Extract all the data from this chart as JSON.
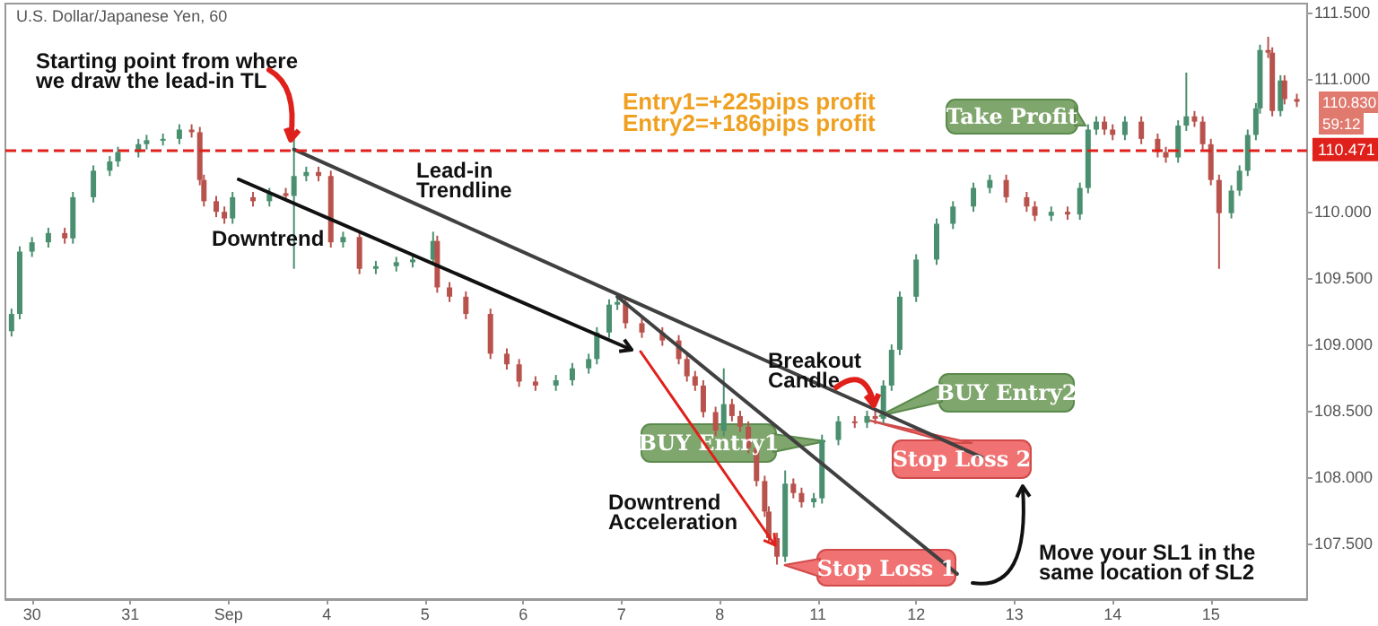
{
  "chart_data": {
    "type": "candlestick",
    "title": "U.S. Dollar/Japanese Yen, 60",
    "categories": [
      null,
      null,
      null,
      null,
      null,
      null,
      "30",
      null,
      null,
      null,
      null,
      null,
      null,
      null,
      null,
      null,
      null,
      null,
      null,
      null,
      null,
      null,
      null,
      null,
      null,
      null,
      null,
      null,
      null,
      null,
      "31",
      null,
      null,
      null,
      null,
      null,
      null,
      null,
      null,
      null,
      null,
      null,
      null,
      null,
      null,
      null,
      null,
      null,
      null,
      null,
      null,
      null,
      null,
      null,
      "Sep",
      null,
      null,
      null,
      null,
      null,
      null,
      null,
      null,
      null,
      null,
      null,
      null,
      null,
      null,
      null,
      null,
      null,
      null,
      null,
      null,
      null,
      null,
      null,
      "4",
      null,
      null,
      null,
      null,
      null,
      null,
      null,
      null,
      null,
      null,
      null,
      null,
      null,
      null,
      null,
      null,
      null,
      null,
      null,
      null,
      null,
      null,
      null,
      "5",
      null,
      null,
      null,
      null,
      null,
      null,
      null,
      null,
      null,
      null,
      null,
      null,
      null,
      null,
      null,
      null,
      null,
      null,
      null,
      null,
      null,
      null,
      null,
      "6",
      null,
      null,
      null,
      null,
      null,
      null,
      null,
      null,
      null,
      null,
      null,
      null,
      null,
      null,
      null,
      null,
      null,
      null,
      null,
      null,
      null,
      null,
      null,
      "7",
      null,
      null,
      null,
      null,
      null,
      null,
      null,
      null,
      null,
      null,
      null,
      null,
      null,
      null,
      null,
      null,
      null,
      null,
      null,
      null,
      null,
      null,
      null,
      "8",
      null,
      null,
      null,
      null,
      null,
      null,
      null,
      null,
      null,
      null,
      null,
      null,
      null,
      null,
      null,
      null,
      null,
      null,
      null,
      null,
      null,
      null,
      null,
      "11",
      null,
      null,
      null,
      null,
      null,
      null,
      null,
      null,
      null,
      null,
      null,
      null,
      null,
      null,
      null,
      null,
      null,
      null,
      null,
      null,
      null,
      null,
      null,
      "12",
      null,
      null,
      null,
      null,
      null,
      null,
      null,
      null,
      null,
      null,
      null,
      null,
      null,
      null,
      null,
      null,
      null,
      null,
      null,
      null,
      null,
      null,
      null,
      "13",
      null,
      null,
      null,
      null,
      null,
      null,
      null,
      null,
      null,
      null,
      null,
      null,
      null,
      null,
      null,
      null,
      null,
      null,
      null,
      null,
      null,
      null,
      null,
      "14",
      null,
      null,
      null,
      null,
      null,
      null,
      null,
      null,
      null,
      null,
      null,
      null,
      null,
      null,
      null,
      null,
      null,
      null,
      null,
      null,
      null,
      null,
      null,
      "15",
      null,
      null,
      null,
      null,
      null,
      null,
      null,
      null,
      null,
      null,
      null,
      null,
      null,
      null,
      null,
      null,
      null,
      null,
      null,
      null,
      null,
      null,
      null
    ],
    "ylim": [
      107.08,
      111.57
    ],
    "yticks": [
      {
        "value": 107.5,
        "label": "107.500"
      },
      {
        "value": 108,
        "label": "108.000"
      },
      {
        "value": 108.5,
        "label": "108.500"
      },
      {
        "value": 109,
        "label": "109.000"
      },
      {
        "value": 109.5,
        "label": "109.500"
      },
      {
        "value": 110,
        "label": "110.000"
      },
      {
        "value": 111,
        "label": "111.000"
      },
      {
        "value": 111.5,
        "label": "111.500"
      }
    ],
    "grid": false,
    "ref_lines": [
      {
        "axis": "y",
        "value": 110.471,
        "label": "110.471",
        "color": "#e0201b",
        "line_style": "dashed"
      }
    ],
    "series": [
      {
        "ohlc": [
          null,
          [
            109.1,
            109.27,
            109.06,
            109.23
          ],
          null,
          [
            109.23,
            109.74,
            109.19,
            109.7
          ],
          null,
          null,
          [
            109.7,
            109.81,
            109.66,
            109.77
          ],
          null,
          null,
          null,
          [
            109.77,
            109.88,
            109.73,
            109.84
          ],
          null,
          null,
          null,
          [
            109.84,
            109.88,
            109.76,
            109.8
          ],
          null,
          [
            109.8,
            110.15,
            109.76,
            110.11
          ],
          null,
          null,
          null,
          null,
          [
            110.11,
            110.35,
            110.07,
            110.31
          ],
          null,
          null,
          null,
          [
            110.31,
            110.42,
            110.27,
            110.38
          ],
          null,
          [
            110.38,
            110.49,
            110.34,
            110.45
          ],
          null,
          null,
          null,
          null,
          [
            110.45,
            110.55,
            110.41,
            110.51
          ],
          null,
          [
            110.51,
            110.58,
            110.47,
            110.54
          ],
          null,
          null,
          null,
          [
            110.54,
            110.59,
            110.5,
            110.55
          ],
          null,
          null,
          null,
          [
            110.55,
            110.66,
            110.51,
            110.62
          ],
          null,
          null,
          [
            110.62,
            110.66,
            110.56,
            110.6
          ],
          null,
          [
            110.6,
            110.64,
            110.2,
            110.24
          ],
          [
            110.24,
            110.28,
            110.04,
            110.08
          ],
          null,
          null,
          [
            110.08,
            110.12,
            109.96,
            110.0
          ],
          null,
          [
            110.0,
            110.04,
            109.91,
            109.95
          ],
          null,
          [
            109.95,
            110.15,
            109.91,
            110.11
          ],
          null,
          null,
          null,
          null,
          [
            110.11,
            110.15,
            110.04,
            110.08
          ],
          null,
          null,
          null,
          [
            110.08,
            110.18,
            110.04,
            110.14
          ],
          null,
          null,
          null,
          [
            110.14,
            110.18,
            110.08,
            110.12
          ],
          null,
          [
            110.12,
            110.62,
            109.57,
            110.27
          ],
          null,
          null,
          [
            110.27,
            110.34,
            110.23,
            110.3
          ],
          null,
          null,
          [
            110.3,
            110.34,
            110.23,
            110.27
          ],
          null,
          null,
          [
            110.27,
            110.31,
            109.73,
            109.77
          ],
          null,
          null,
          [
            109.77,
            109.85,
            109.73,
            109.81
          ],
          null,
          null,
          null,
          [
            109.81,
            109.85,
            109.53,
            109.57
          ],
          null,
          null,
          null,
          [
            109.57,
            109.63,
            109.53,
            109.59
          ],
          null,
          null,
          null,
          null,
          [
            109.59,
            109.66,
            109.55,
            109.62
          ],
          null,
          null,
          null,
          [
            109.62,
            109.68,
            109.58,
            109.64
          ],
          null,
          null,
          null,
          null,
          [
            109.64,
            109.85,
            109.6,
            109.78
          ],
          [
            109.78,
            109.82,
            109.39,
            109.43
          ],
          null,
          null,
          [
            109.43,
            109.47,
            109.32,
            109.36
          ],
          null,
          null,
          null,
          [
            109.36,
            109.4,
            109.19,
            109.23
          ],
          null,
          null,
          null,
          null,
          null,
          [
            109.23,
            109.27,
            108.89,
            108.93
          ],
          null,
          null,
          null,
          [
            108.93,
            108.97,
            108.81,
            108.85
          ],
          null,
          null,
          [
            108.85,
            108.89,
            108.68,
            108.72
          ],
          null,
          null,
          null,
          [
            108.72,
            108.76,
            108.65,
            108.69
          ],
          null,
          null,
          null,
          null,
          [
            108.69,
            108.77,
            108.65,
            108.73
          ],
          null,
          null,
          null,
          [
            108.73,
            108.86,
            108.69,
            108.82
          ],
          null,
          null,
          null,
          [
            108.82,
            108.93,
            108.78,
            108.89
          ],
          null,
          [
            108.89,
            109.13,
            108.85,
            109.09
          ],
          null,
          null,
          [
            109.09,
            109.34,
            109.05,
            109.3
          ],
          null,
          [
            109.3,
            109.36,
            109.26,
            109.32
          ],
          null,
          [
            109.32,
            109.36,
            109.12,
            109.16
          ],
          null,
          null,
          null,
          [
            109.16,
            109.2,
            109.05,
            109.09
          ],
          null,
          null,
          null,
          null,
          [
            109.09,
            109.13,
            108.99,
            109.03
          ],
          null,
          null,
          null,
          [
            109.03,
            109.07,
            108.85,
            108.89
          ],
          null,
          [
            108.89,
            108.93,
            108.72,
            108.76
          ],
          null,
          [
            108.76,
            108.8,
            108.65,
            108.69
          ],
          null,
          [
            108.69,
            108.73,
            108.45,
            108.49
          ],
          null,
          null,
          [
            108.49,
            108.53,
            108.31,
            108.35
          ],
          null,
          [
            108.35,
            108.82,
            108.31,
            108.55
          ],
          null,
          [
            108.55,
            108.59,
            108.42,
            108.46
          ],
          null,
          [
            108.46,
            108.5,
            108.34,
            108.38
          ],
          null,
          [
            108.38,
            108.42,
            108.18,
            108.22
          ],
          null,
          [
            108.22,
            108.26,
            107.93,
            107.97
          ],
          null,
          [
            107.97,
            108.01,
            107.7,
            107.74
          ],
          [
            107.74,
            107.78,
            107.5,
            107.54
          ],
          null,
          [
            107.54,
            107.58,
            107.34,
            107.4
          ],
          null,
          [
            107.4,
            108.05,
            107.36,
            107.95
          ],
          null,
          [
            107.95,
            107.99,
            107.84,
            107.88
          ],
          null,
          [
            107.88,
            107.92,
            107.77,
            107.81
          ],
          null,
          null,
          [
            107.81,
            107.88,
            107.77,
            107.84
          ],
          null,
          [
            107.84,
            108.32,
            107.8,
            108.28
          ],
          null,
          null,
          null,
          [
            108.28,
            108.46,
            108.24,
            108.42
          ],
          null,
          null,
          null,
          [
            108.42,
            108.46,
            108.37,
            108.41
          ],
          null,
          null,
          [
            108.41,
            108.5,
            108.37,
            108.46
          ],
          null,
          [
            108.46,
            108.52,
            108.4,
            108.44
          ],
          null,
          [
            108.44,
            108.73,
            108.4,
            108.69
          ],
          null,
          [
            108.69,
            109.0,
            108.65,
            108.96
          ],
          null,
          [
            108.96,
            109.4,
            108.92,
            109.36
          ],
          null,
          null,
          null,
          [
            109.36,
            109.68,
            109.32,
            109.64
          ],
          null,
          null,
          null,
          null,
          [
            109.64,
            109.95,
            109.6,
            109.91
          ],
          null,
          null,
          null,
          [
            109.91,
            110.08,
            109.87,
            110.04
          ],
          null,
          null,
          null,
          null,
          [
            110.04,
            110.22,
            110.0,
            110.18
          ],
          null,
          null,
          null,
          [
            110.18,
            110.28,
            110.14,
            110.24
          ],
          null,
          null,
          null,
          [
            110.24,
            110.28,
            110.07,
            110.11
          ],
          null,
          null,
          null,
          null,
          [
            110.11,
            110.15,
            110.0,
            110.04
          ],
          null,
          [
            110.04,
            110.08,
            109.93,
            109.97
          ],
          null,
          null,
          null,
          [
            109.97,
            110.04,
            109.93,
            110.0
          ],
          null,
          null,
          null,
          [
            110.0,
            110.04,
            109.94,
            109.98
          ],
          null,
          null,
          [
            109.98,
            110.22,
            109.94,
            110.18
          ],
          null,
          [
            110.18,
            110.66,
            110.14,
            110.62
          ],
          null,
          [
            110.62,
            110.72,
            110.58,
            110.68
          ],
          null,
          [
            110.68,
            110.72,
            110.58,
            110.62
          ],
          null,
          [
            110.62,
            110.66,
            110.54,
            110.58
          ],
          null,
          null,
          [
            110.58,
            110.72,
            110.54,
            110.68
          ],
          null,
          null,
          null,
          [
            110.68,
            110.72,
            110.51,
            110.55
          ],
          null,
          null,
          null,
          [
            110.55,
            110.59,
            110.41,
            110.45
          ],
          null,
          [
            110.45,
            110.49,
            110.37,
            110.41
          ],
          null,
          null,
          [
            110.41,
            110.69,
            110.37,
            110.65
          ],
          null,
          [
            110.65,
            111.05,
            110.61,
            110.72
          ],
          null,
          [
            110.72,
            110.76,
            110.64,
            110.68
          ],
          null,
          [
            110.68,
            110.72,
            110.47,
            110.51
          ],
          null,
          [
            110.51,
            110.55,
            110.2,
            110.24
          ],
          null,
          [
            110.24,
            110.28,
            109.57,
            109.99
          ],
          null,
          null,
          [
            109.99,
            110.2,
            109.95,
            110.16
          ],
          null,
          [
            110.16,
            110.35,
            110.12,
            110.31
          ],
          null,
          [
            110.31,
            110.62,
            110.27,
            110.58
          ],
          null,
          [
            110.58,
            110.82,
            110.54,
            110.78
          ],
          [
            110.78,
            111.26,
            110.74,
            111.22
          ],
          null,
          [
            111.22,
            111.32,
            111.16,
            111.2
          ],
          [
            111.2,
            111.24,
            110.72,
            110.76
          ],
          null,
          [
            110.76,
            111.03,
            110.72,
            110.99
          ],
          [
            110.99,
            111.03,
            110.81,
            110.85
          ],
          null,
          null,
          [
            110.85,
            110.89,
            110.79,
            110.83
          ],
          null,
          null
        ],
        "colors": [
          null,
          "#4a8f6f",
          null,
          "#4a8f6f",
          null,
          null,
          "#4a8f6f",
          null,
          null,
          null,
          "#4a8f6f",
          null,
          null,
          null,
          "#b8524c",
          null,
          "#4a8f6f",
          null,
          null,
          null,
          null,
          "#4a8f6f",
          null,
          null,
          null,
          "#4a8f6f",
          null,
          "#4a8f6f",
          null,
          null,
          null,
          null,
          "#4a8f6f",
          null,
          "#4a8f6f",
          null,
          null,
          null,
          "#4a8f6f",
          null,
          null,
          null,
          "#4a8f6f",
          null,
          null,
          "#b8524c",
          null,
          "#b8524c",
          "#b8524c",
          null,
          null,
          "#b8524c",
          null,
          "#b8524c",
          null,
          "#4a8f6f",
          null,
          null,
          null,
          null,
          "#b8524c",
          null,
          null,
          null,
          "#4a8f6f",
          null,
          null,
          null,
          "#b8524c",
          null,
          "#4a8f6f",
          null,
          null,
          "#4a8f6f",
          null,
          null,
          "#b8524c",
          null,
          null,
          "#b8524c",
          null,
          null,
          "#4a8f6f",
          null,
          null,
          null,
          "#b8524c",
          null,
          null,
          null,
          "#4a8f6f",
          null,
          null,
          null,
          null,
          "#4a8f6f",
          null,
          null,
          null,
          "#4a8f6f",
          null,
          null,
          null,
          null,
          "#4a8f6f",
          "#b8524c",
          null,
          null,
          "#b8524c",
          null,
          null,
          null,
          "#b8524c",
          null,
          null,
          null,
          null,
          null,
          "#b8524c",
          null,
          null,
          null,
          "#b8524c",
          null,
          null,
          "#b8524c",
          null,
          null,
          null,
          "#b8524c",
          null,
          null,
          null,
          null,
          "#4a8f6f",
          null,
          null,
          null,
          "#4a8f6f",
          null,
          null,
          null,
          "#4a8f6f",
          null,
          "#4a8f6f",
          null,
          null,
          "#4a8f6f",
          null,
          "#4a8f6f",
          null,
          "#b8524c",
          null,
          null,
          null,
          "#b8524c",
          null,
          null,
          null,
          null,
          "#b8524c",
          null,
          null,
          null,
          "#b8524c",
          null,
          "#b8524c",
          null,
          "#b8524c",
          null,
          "#b8524c",
          null,
          null,
          "#b8524c",
          null,
          "#4a8f6f",
          null,
          "#b8524c",
          null,
          "#b8524c",
          null,
          "#b8524c",
          null,
          "#b8524c",
          null,
          "#b8524c",
          "#b8524c",
          null,
          "#b8524c",
          null,
          "#4a8f6f",
          null,
          "#b8524c",
          null,
          "#b8524c",
          null,
          null,
          "#4a8f6f",
          null,
          "#4a8f6f",
          null,
          null,
          null,
          "#4a8f6f",
          null,
          null,
          null,
          "#b8524c",
          null,
          null,
          "#4a8f6f",
          null,
          "#b8524c",
          null,
          "#4a8f6f",
          null,
          "#4a8f6f",
          null,
          "#4a8f6f",
          null,
          null,
          null,
          "#4a8f6f",
          null,
          null,
          null,
          null,
          "#4a8f6f",
          null,
          null,
          null,
          "#4a8f6f",
          null,
          null,
          null,
          null,
          "#4a8f6f",
          null,
          null,
          null,
          "#4a8f6f",
          null,
          null,
          null,
          "#b8524c",
          null,
          null,
          null,
          null,
          "#b8524c",
          null,
          "#b8524c",
          null,
          null,
          null,
          "#4a8f6f",
          null,
          null,
          null,
          "#b8524c",
          null,
          null,
          "#4a8f6f",
          null,
          "#4a8f6f",
          null,
          "#4a8f6f",
          null,
          "#b8524c",
          null,
          "#b8524c",
          null,
          null,
          "#4a8f6f",
          null,
          null,
          null,
          "#b8524c",
          null,
          null,
          null,
          "#b8524c",
          null,
          "#b8524c",
          null,
          null,
          "#4a8f6f",
          null,
          "#4a8f6f",
          null,
          "#b8524c",
          null,
          "#b8524c",
          null,
          "#b8524c",
          null,
          "#b8524c",
          null,
          null,
          "#4a8f6f",
          null,
          "#4a8f6f",
          null,
          "#4a8f6f",
          null,
          "#4a8f6f",
          "#4a8f6f",
          null,
          "#b8524c",
          "#b8524c",
          null,
          "#4a8f6f",
          "#b8524c",
          null,
          null,
          "#b8524c",
          null,
          null
        ]
      },
      {
        "type": "line",
        "color": "#404040",
        "values": [
          null,
          null,
          null,
          null,
          null,
          null,
          null,
          null,
          null,
          null,
          null,
          null,
          null,
          null,
          null,
          null,
          null,
          null,
          null,
          null,
          null,
          null,
          null,
          null,
          null,
          null,
          null,
          null,
          null,
          null,
          null,
          null,
          null,
          null,
          null,
          null,
          null,
          null,
          null,
          null,
          null,
          null,
          null,
          null,
          null,
          null,
          null,
          null,
          null,
          null,
          null,
          null,
          null,
          null,
          null,
          null,
          null,
          null,
          null,
          null,
          null,
          null,
          null,
          null,
          null,
          null,
          null,
          null,
          null,
          null,
          110.47,
          null,
          null,
          null,
          null,
          null,
          null,
          null,
          null,
          null,
          null,
          null,
          null,
          null,
          null,
          null,
          null,
          null,
          null,
          null,
          null,
          null,
          null,
          null,
          null,
          null,
          null,
          null,
          null,
          null,
          null,
          null,
          null,
          null,
          null,
          null,
          null,
          null,
          null,
          null,
          null,
          null,
          null,
          null,
          null,
          null,
          null,
          null,
          null,
          null,
          null,
          null,
          null,
          null,
          null,
          null,
          null,
          null,
          null,
          null,
          null,
          null,
          null,
          null,
          null,
          null,
          null,
          null,
          null,
          null,
          null,
          null,
          null,
          null,
          null,
          null,
          null,
          null,
          null,
          null,
          null,
          null,
          null,
          null,
          null,
          null,
          null,
          null,
          null,
          null,
          null,
          null,
          null,
          null,
          null,
          null,
          null,
          null,
          null,
          null,
          null,
          null,
          null,
          null,
          null,
          null,
          null,
          null,
          null,
          null,
          null,
          null,
          null,
          null,
          null,
          null,
          null,
          null,
          null,
          null,
          null,
          null,
          null,
          null,
          null,
          null,
          null,
          null,
          null,
          null,
          null,
          null,
          null,
          null,
          null,
          null,
          null,
          null,
          null,
          null,
          null,
          null,
          null,
          null,
          null,
          null,
          null,
          null,
          null,
          null,
          null,
          null,
          null,
          null,
          null,
          null,
          null,
          null,
          null,
          null,
          null,
          null,
          null,
          null,
          null,
          null,
          null,
          null,
          108.15,
          null,
          null,
          null,
          null,
          null,
          null,
          null,
          null,
          null,
          null,
          null,
          null,
          null,
          null,
          null,
          null,
          null,
          null,
          null,
          null,
          null,
          null,
          null,
          null,
          null,
          null,
          null,
          null,
          null,
          null,
          null,
          null,
          null,
          null,
          null,
          null,
          null,
          null,
          null,
          null,
          null,
          null,
          null,
          null,
          null,
          null,
          null,
          null,
          null,
          null,
          null,
          null,
          null,
          null,
          null,
          null,
          null,
          null,
          null,
          null,
          null,
          null,
          null,
          null,
          null,
          null,
          null,
          null,
          null,
          null,
          null,
          null,
          null,
          null,
          null,
          null,
          null,
          null,
          null
        ]
      },
      {
        "type": "line",
        "color": "#404040",
        "values": [
          null,
          null,
          null,
          null,
          null,
          null,
          null,
          null,
          null,
          null,
          null,
          null,
          null,
          null,
          null,
          null,
          null,
          null,
          null,
          null,
          null,
          null,
          null,
          null,
          null,
          null,
          null,
          null,
          null,
          null,
          null,
          null,
          null,
          null,
          null,
          null,
          null,
          null,
          null,
          null,
          null,
          null,
          null,
          null,
          null,
          null,
          null,
          null,
          null,
          null,
          null,
          null,
          null,
          null,
          null,
          null,
          null,
          null,
          null,
          null,
          null,
          null,
          null,
          null,
          null,
          null,
          null,
          null,
          null,
          null,
          null,
          null,
          null,
          null,
          null,
          null,
          null,
          null,
          null,
          null,
          null,
          null,
          null,
          null,
          null,
          null,
          null,
          null,
          null,
          null,
          null,
          null,
          null,
          null,
          null,
          null,
          null,
          null,
          null,
          null,
          null,
          null,
          null,
          null,
          null,
          null,
          null,
          null,
          null,
          null,
          null,
          null,
          null,
          null,
          null,
          null,
          null,
          null,
          null,
          null,
          null,
          null,
          null,
          null,
          null,
          null,
          null,
          null,
          null,
          null,
          null,
          null,
          null,
          null,
          null,
          null,
          null,
          null,
          null,
          null,
          null,
          null,
          null,
          null,
          null,
          null,
          null,
          null,
          null,
          109.36,
          null,
          null,
          null,
          null,
          null,
          null,
          null,
          null,
          null,
          null,
          null,
          null,
          null,
          null,
          null,
          null,
          null,
          null,
          null,
          null,
          null,
          null,
          null,
          null,
          null,
          null,
          null,
          null,
          null,
          null,
          null,
          null,
          null,
          null,
          null,
          null,
          null,
          null,
          null,
          null,
          null,
          null,
          null,
          null,
          null,
          null,
          null,
          null,
          null,
          null,
          null,
          null,
          null,
          null,
          null,
          null,
          null,
          null,
          null,
          null,
          null,
          null,
          null,
          null,
          null,
          null,
          null,
          null,
          null,
          null,
          null,
          null,
          null,
          null,
          null,
          null,
          null,
          null,
          null,
          null,
          null,
          null,
          107.27,
          null,
          null,
          null,
          null,
          null,
          null,
          null,
          null,
          null,
          null,
          null,
          null,
          null,
          null,
          null,
          null,
          null,
          null,
          null,
          null,
          null,
          null,
          null,
          null,
          null,
          null,
          null,
          null,
          null,
          null,
          null,
          null,
          null,
          null,
          null,
          null,
          null,
          null,
          null,
          null,
          null,
          null,
          null,
          null,
          null,
          null,
          null,
          null,
          null,
          null,
          null,
          null,
          null,
          null,
          null,
          null,
          null,
          null,
          null,
          null,
          null,
          null,
          null,
          null,
          null,
          null,
          null,
          null,
          null,
          null,
          null,
          null,
          null,
          null,
          null,
          null,
          null,
          null,
          null,
          null,
          null,
          null,
          null,
          null,
          null
        ]
      }
    ],
    "annotations": [
      "Starting point from where\nwe draw the lead-in TL",
      "Lead-in\nTrendline",
      "Downtrend",
      "Entry1=+225pips profit\nEntry2=+186pips profit",
      "Breakout\nCandle",
      "Downtrend\nAcceleration",
      "Move your SL1 in the\nsame location of SL2",
      "Take Profit",
      "BUY Entry1",
      "BUY Entry2",
      "Stop Loss 1",
      "Stop Loss 2",
      "110.830",
      "59:12"
    ]
  }
}
